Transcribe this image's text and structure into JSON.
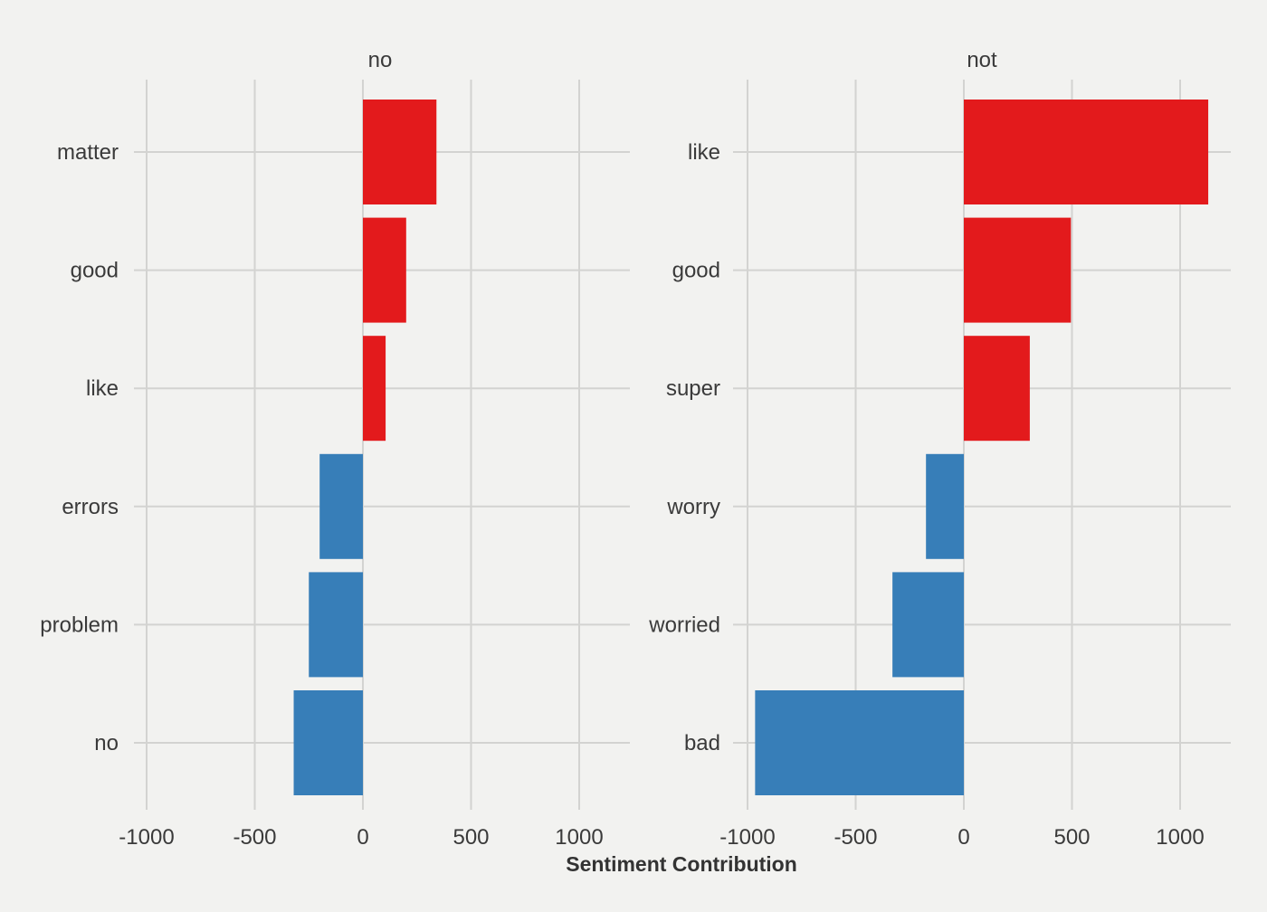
{
  "chart_data": {
    "type": "bar",
    "orientation": "horizontal",
    "facets": [
      {
        "title": "no",
        "categories": [
          "matter",
          "good",
          "like",
          "errors",
          "problem",
          "no"
        ],
        "values": [
          340,
          200,
          105,
          -200,
          -250,
          -320
        ]
      },
      {
        "title": "not",
        "categories": [
          "like",
          "good",
          "super",
          "worry",
          "worried",
          "bad"
        ],
        "values": [
          1130,
          495,
          305,
          -175,
          -330,
          -965
        ]
      }
    ],
    "xlabel": "Sentiment Contribution",
    "ylabel": "",
    "xlim": [
      -1000,
      1000
    ],
    "xticks": [
      -1000,
      -500,
      0,
      500,
      1000
    ],
    "xtick_labels": [
      "-1000",
      "-500",
      "0",
      "500",
      "1000"
    ],
    "grid": true,
    "legend": "none",
    "colors": {
      "positive": "#e31a1c",
      "negative": "#377eb8",
      "background": "#f2f2f0",
      "grid": "#d3d3d1"
    }
  }
}
